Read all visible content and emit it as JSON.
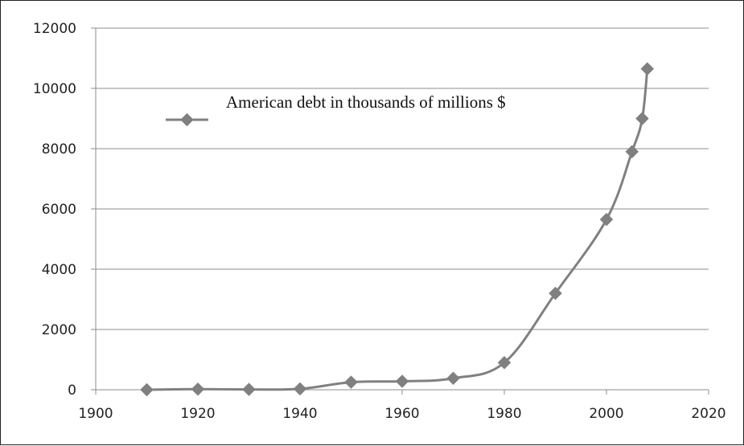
{
  "chart_data": {
    "type": "line",
    "title": "",
    "xlabel": "",
    "ylabel": "",
    "xlim": [
      1900,
      2020
    ],
    "ylim": [
      0,
      12000
    ],
    "x_ticks": [
      1900,
      1920,
      1940,
      1960,
      1980,
      2000,
      2020
    ],
    "y_ticks": [
      0,
      2000,
      4000,
      6000,
      8000,
      10000,
      12000
    ],
    "grid": "horizontal",
    "legend_position": "top-left",
    "series": [
      {
        "name": "American debt in thousands of millions $",
        "color": "#808080",
        "marker": "diamond",
        "points": [
          {
            "x": 1910,
            "y": 0
          },
          {
            "x": 1920,
            "y": 20
          },
          {
            "x": 1930,
            "y": 10
          },
          {
            "x": 1940,
            "y": 30
          },
          {
            "x": 1950,
            "y": 250
          },
          {
            "x": 1960,
            "y": 280
          },
          {
            "x": 1970,
            "y": 380
          },
          {
            "x": 1980,
            "y": 900
          },
          {
            "x": 1990,
            "y": 3200
          },
          {
            "x": 2000,
            "y": 5650
          },
          {
            "x": 2005,
            "y": 7900
          },
          {
            "x": 2007,
            "y": 9000
          },
          {
            "x": 2008,
            "y": 10650
          }
        ]
      }
    ]
  }
}
